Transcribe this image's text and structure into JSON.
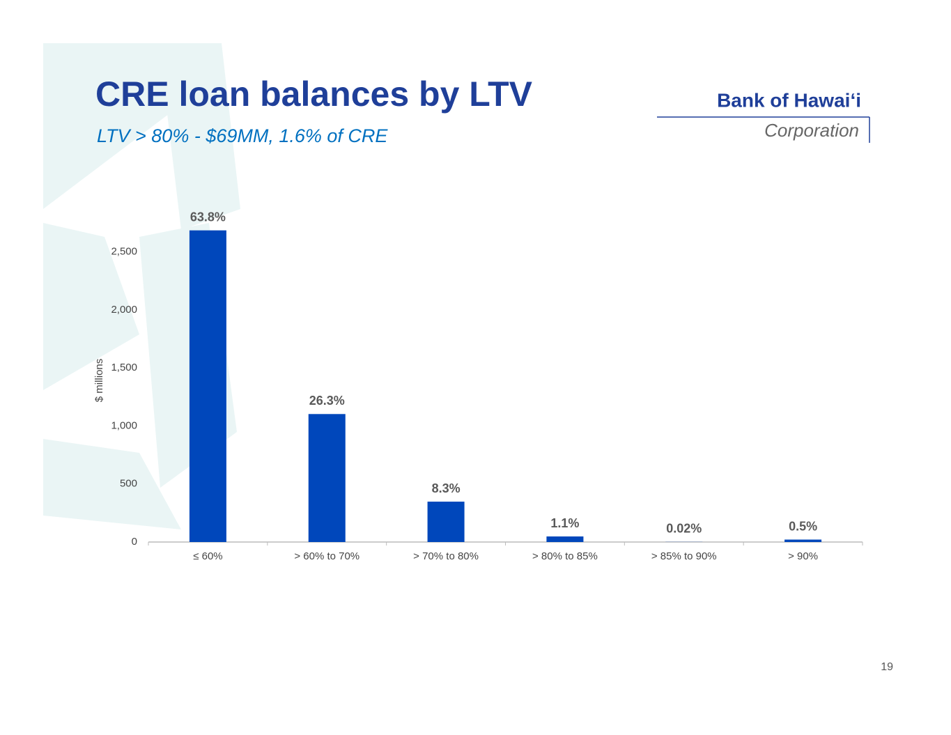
{
  "chart_data": {
    "type": "bar",
    "title": "CRE loan balances by LTV",
    "subtitle": "LTV > 80% - $69MM, 1.6% of CRE",
    "y_label": "$ millions",
    "categories": [
      "≤ 60%",
      "> 60% to 70%",
      "> 70% to 80%",
      "> 80% to 85%",
      "> 85% to 90%",
      "> 90%"
    ],
    "values": [
      2686,
      1103,
      348,
      48,
      1,
      21
    ],
    "share_labels": [
      "63.8%",
      "26.3%",
      "8.3%",
      "1.1%",
      "0.02%",
      "0.5%"
    ],
    "color": "#0047bb",
    "ylim": [
      0,
      2750
    ],
    "yticks": [
      0,
      500,
      {
        "value": 1000,
        "label": "1,000"
      },
      {
        "value": 1500,
        "label": "1,500"
      },
      {
        "value": 2000,
        "label": "2,000"
      },
      {
        "value": 2500,
        "label": "2,500"
      }
    ],
    "grid": false
  },
  "logo": {
    "name": "Bank of Hawaiʻi",
    "sub": "Corporation"
  },
  "page_number": "19"
}
